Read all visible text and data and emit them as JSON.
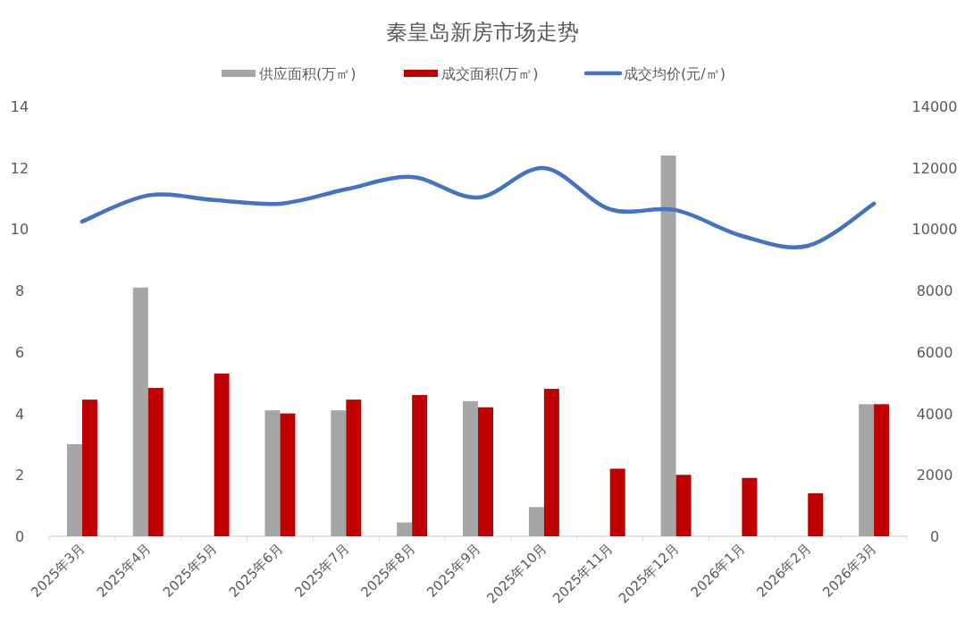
{
  "chart_data": {
    "type": "bar",
    "title": "秦皇岛新房市场走势",
    "categories": [
      "2025年3月",
      "2025年4月",
      "2025年5月",
      "2025年6月",
      "2025年7月",
      "2025年8月",
      "2025年9月",
      "2025年10月",
      "2025年11月",
      "2025年12月",
      "2026年1月",
      "2026年2月",
      "2026年3月"
    ],
    "series": [
      {
        "name": "供应面积(万㎡)",
        "color": "#a6a6a6",
        "values": [
          3.0,
          8.1,
          null,
          4.1,
          4.1,
          0.45,
          4.4,
          0.95,
          null,
          12.4,
          null,
          null,
          4.3
        ]
      },
      {
        "name": "成交面积(万㎡)",
        "color": "#c00000",
        "values": [
          4.45,
          4.83,
          5.3,
          4.0,
          4.45,
          4.6,
          4.2,
          4.8,
          2.2,
          2.0,
          1.9,
          1.4,
          4.3
        ]
      },
      {
        "name": "成交均价(元/㎡)",
        "type": "line",
        "axis": "y2",
        "color": "#4472c4",
        "values": [
          10250,
          11100,
          10950,
          10830,
          11300,
          11700,
          11030,
          11990,
          10650,
          10620,
          9780,
          9460,
          10830
        ]
      }
    ],
    "ylim": [
      0,
      14
    ],
    "yticks": [
      0,
      2,
      4,
      6,
      8,
      10,
      12,
      14
    ],
    "y2lim": [
      0,
      14000
    ],
    "y2ticks": [
      0,
      2000,
      4000,
      6000,
      8000,
      10000,
      12000,
      14000
    ],
    "legend": "top",
    "grid": false
  }
}
